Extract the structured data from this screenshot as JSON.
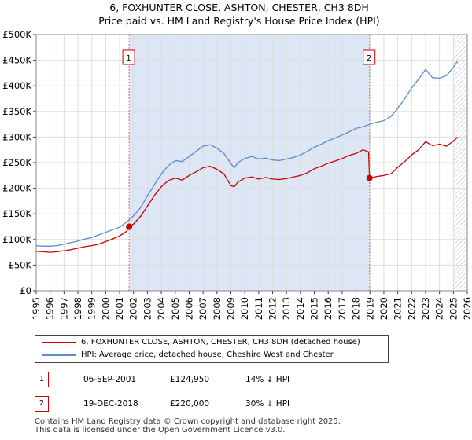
{
  "chart_data": {
    "type": "line",
    "title": "6, FOXHUNTER CLOSE, ASHTON, CHESTER, CH3 8DH",
    "subtitle": "Price paid vs. HM Land Registry's House Price Index (HPI)",
    "x_ticks": [
      "1995",
      "1996",
      "1997",
      "1998",
      "1999",
      "2000",
      "2001",
      "2002",
      "2003",
      "2004",
      "2005",
      "2006",
      "2007",
      "2008",
      "2009",
      "2010",
      "2011",
      "2012",
      "2013",
      "2014",
      "2015",
      "2016",
      "2017",
      "2018",
      "2019",
      "2020",
      "2021",
      "2022",
      "2023",
      "2024",
      "2025",
      "2026"
    ],
    "y_ticks": [
      "£0",
      "£50K",
      "£100K",
      "£150K",
      "£200K",
      "£250K",
      "£300K",
      "£350K",
      "£400K",
      "£450K",
      "£500K"
    ],
    "xlim": [
      1995,
      2026
    ],
    "ylim": [
      0,
      500000
    ],
    "shaded_period": [
      2001.68,
      2018.97
    ],
    "hatched_from": 2025.0,
    "colors": {
      "property": "#cc0000",
      "hpi": "#5b8ccc",
      "shade": "#dde6f5",
      "grid": "#dddddd"
    },
    "series": [
      {
        "name": "6, FOXHUNTER CLOSE, ASHTON, CHESTER, CH3 8DH (detached house)",
        "color": "#cc0000",
        "x": [
          1995.0,
          1995.5,
          1996.0,
          1996.5,
          1997.0,
          1997.5,
          1998.0,
          1998.5,
          1999.0,
          1999.5,
          2000.0,
          2000.5,
          2001.0,
          2001.5,
          2001.68,
          2002.0,
          2002.5,
          2003.0,
          2003.5,
          2004.0,
          2004.5,
          2005.0,
          2005.5,
          2006.0,
          2006.5,
          2007.0,
          2007.5,
          2008.0,
          2008.5,
          2009.0,
          2009.25,
          2009.5,
          2010.0,
          2010.5,
          2011.0,
          2011.5,
          2012.0,
          2012.5,
          2013.0,
          2013.5,
          2014.0,
          2014.5,
          2015.0,
          2015.5,
          2016.0,
          2016.5,
          2017.0,
          2017.5,
          2018.0,
          2018.5,
          2018.9,
          2018.97,
          2019.5,
          2020.0,
          2020.5,
          2021.0,
          2021.5,
          2022.0,
          2022.5,
          2023.0,
          2023.5,
          2024.0,
          2024.5,
          2025.0,
          2025.3
        ],
        "values": [
          77000,
          76000,
          75000,
          76000,
          78000,
          80000,
          83000,
          86000,
          88000,
          91000,
          96000,
          101000,
          107000,
          116000,
          124950,
          130000,
          145000,
          165000,
          186000,
          203000,
          215000,
          220000,
          216000,
          225000,
          232000,
          240000,
          243000,
          237000,
          228000,
          205000,
          203000,
          212000,
          220000,
          222000,
          218000,
          221000,
          218000,
          217000,
          219000,
          222000,
          225000,
          230000,
          238000,
          243000,
          249000,
          253000,
          258000,
          264000,
          268000,
          275000,
          271000,
          220000,
          223000,
          225000,
          228000,
          241000,
          252000,
          265000,
          275000,
          291000,
          283000,
          286000,
          282000,
          292000,
          300000
        ]
      },
      {
        "name": "HPI: Average price, detached house, Cheshire West and Chester",
        "color": "#5b8ccc",
        "x": [
          1995.0,
          1995.5,
          1996.0,
          1996.5,
          1997.0,
          1997.5,
          1998.0,
          1998.5,
          1999.0,
          1999.5,
          2000.0,
          2000.5,
          2001.0,
          2001.5,
          2002.0,
          2002.5,
          2003.0,
          2003.5,
          2004.0,
          2004.5,
          2005.0,
          2005.5,
          2006.0,
          2006.5,
          2007.0,
          2007.5,
          2008.0,
          2008.5,
          2009.0,
          2009.25,
          2009.5,
          2010.0,
          2010.5,
          2011.0,
          2011.5,
          2012.0,
          2012.5,
          2013.0,
          2013.5,
          2014.0,
          2014.5,
          2015.0,
          2015.5,
          2016.0,
          2016.5,
          2017.0,
          2017.5,
          2018.0,
          2018.5,
          2019.0,
          2019.5,
          2020.0,
          2020.5,
          2021.0,
          2021.5,
          2022.0,
          2022.5,
          2023.0,
          2023.5,
          2024.0,
          2024.5,
          2025.0,
          2025.3
        ],
        "values": [
          88000,
          87000,
          87000,
          88000,
          91000,
          94000,
          97000,
          101000,
          104000,
          109000,
          114000,
          119000,
          124000,
          134000,
          146000,
          162000,
          185000,
          207000,
          228000,
          244000,
          254000,
          252000,
          262000,
          272000,
          282000,
          285000,
          278000,
          268000,
          248000,
          240000,
          250000,
          258000,
          262000,
          257000,
          259000,
          255000,
          254000,
          257000,
          260000,
          265000,
          272000,
          280000,
          286000,
          293000,
          298000,
          304000,
          310000,
          317000,
          320000,
          325000,
          329000,
          332000,
          340000,
          356000,
          375000,
          396000,
          413000,
          432000,
          416000,
          415000,
          420000,
          436000,
          448000
        ]
      }
    ],
    "markers": [
      {
        "label": "1",
        "x": 2001.68,
        "value": 124950
      },
      {
        "label": "2",
        "x": 2018.97,
        "value": 220000
      }
    ]
  },
  "legend": {
    "property": "6, FOXHUNTER CLOSE, ASHTON, CHESTER, CH3 8DH (detached house)",
    "hpi": "HPI: Average price, detached house, Cheshire West and Chester"
  },
  "annotations": [
    {
      "label": "1",
      "date": "06-SEP-2001",
      "price": "£124,950",
      "hpi": "14% ↓ HPI"
    },
    {
      "label": "2",
      "date": "19-DEC-2018",
      "price": "£220,000",
      "hpi": "30% ↓ HPI"
    }
  ],
  "footer": {
    "line1": "Contains HM Land Registry data © Crown copyright and database right 2025.",
    "line2": "This data is licensed under the Open Government Licence v3.0."
  }
}
